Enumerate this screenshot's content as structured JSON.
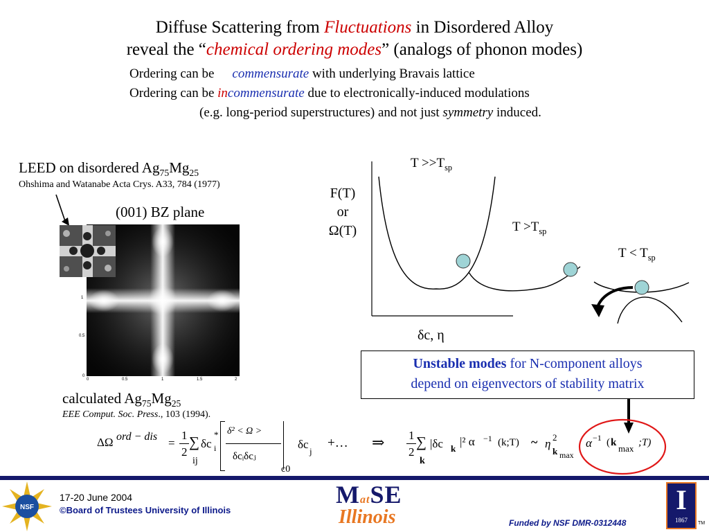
{
  "colors": {
    "accent_red": "#cc0000",
    "accent_blue": "#1a2fb0",
    "footer_bar": "#15196b",
    "footer_blue": "#0d1a8a",
    "box_border": "#000000",
    "circle_red": "#e01818",
    "ball": "#9fd4d6"
  },
  "header": {
    "line1": {
      "pre": "Diffuse Scattering from ",
      "highlight": "Fluctuations",
      "post": " in Disordered Alloy"
    },
    "line2": {
      "pre": "reveal the “",
      "highlight": "chemical ordering modes",
      "post": "” (analogs of phonon modes)"
    },
    "bullet1": {
      "pre": "Ordering can be",
      "highlight": "commensurate",
      "post": " with underlying Bravais lattice"
    },
    "bullet2": {
      "pre": "Ordering can be ",
      "prefix_red": "in",
      "highlight": "commensurate",
      "post": " due to electronically-induced modulations"
    },
    "bullet3": {
      "pre": "(e.g. long-period superstructures)  and not just ",
      "highlight": "symmetry",
      "post": " induced."
    }
  },
  "leed": {
    "title_pre": "LEED  on disordered Ag",
    "sub1": "75",
    "mid": "Mg",
    "sub2": "25",
    "ref": "Ohshima and Watanabe Acta Crys. A33, 784 (1977)",
    "plane_label": "(001) BZ plane",
    "axis_ticks_x": [
      "0",
      "0.5",
      "1",
      "1.5",
      "2"
    ],
    "axis_ticks_y": [
      "1",
      "0.5",
      "0"
    ]
  },
  "calc": {
    "title_pre": "calculated Ag",
    "sub1": "75",
    "mid": "Mg",
    "sub2": "25",
    "ref_italic": "EEE Comput. Soc. Press",
    "ref_post": "., 103 (1994)."
  },
  "plot": {
    "ylabel_line1": "F(T)",
    "ylabel_line2": "or",
    "ylabel_line3": "Ω(T)",
    "xlabel": "δc, η",
    "curve1": {
      "main": "T >>T",
      "sub": "sp"
    },
    "curve2": {
      "main": "T >T",
      "sub": "sp"
    },
    "curve3": {
      "main": "T < T",
      "sub": "sp"
    }
  },
  "callout": {
    "bold": "Unstable modes",
    "rest1": " for N-component alloys",
    "line2": "depend on eigenvectors of stability matrix"
  },
  "equation": {
    "lhs": "ΔΩ",
    "lhs_sup": "ord − dis",
    "eq": "=",
    "half_num": "1",
    "half_den": "2",
    "sum1": "∑",
    "sum1_sub": "ij",
    "dc_i": "δc",
    "i_sub": "i",
    "star": "*",
    "frac_num": "δ² < Ω >",
    "frac_den": "δcᵢδcⱼ",
    "c0": "c0",
    "dc_j": "δc",
    "j_sub": "j",
    "plus_dots": "+…",
    "implies": "⇒",
    "sum2_sub": "k",
    "rhs_mid": "|δc",
    "k_sub": "k",
    "rhs_abs_sq": "|²  α",
    "inv": "−1",
    "rhs_args": "(k;T)",
    "tilde": "~",
    "eta": "η",
    "eta_sup": "2",
    "eta_sub": "k",
    "eta_subsub": "max",
    "alpha2": "α",
    "inv2": "−1",
    "args2_open": "(",
    "kmax": "k",
    "kmax_sub": "max",
    "args2_close": " ;T)"
  },
  "footer": {
    "date": "17-20 June 2004",
    "copyright": "©Board of Trustees University of Illinois",
    "logo_left": "NSF",
    "mse_line1": "M",
    "mse_at": "at",
    "mse_se": "SE",
    "mse_line2": "Illinois",
    "funded": "Funded by NSF DMR-0312448",
    "ui_year": "1867",
    "ui_letter": "I",
    "tm": "TM"
  }
}
